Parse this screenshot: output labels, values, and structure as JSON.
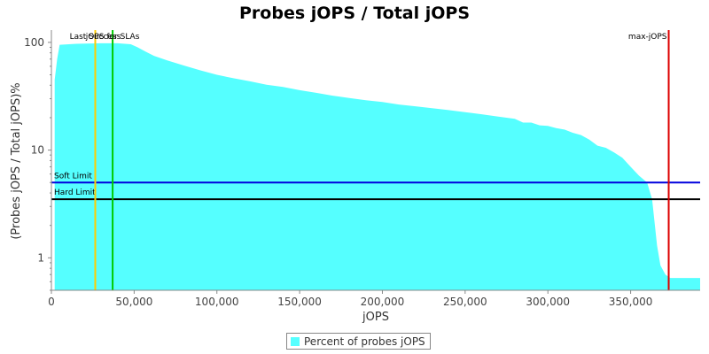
{
  "chart_data": {
    "type": "area",
    "title": "Probes jOPS / Total jOPS",
    "xlabel": "jOPS",
    "ylabel": "(Probes jOPS / Total jOPS)%",
    "x_range": [
      0,
      392000
    ],
    "y_range": [
      0.5,
      130
    ],
    "y_scale": "log",
    "x_ticks": [
      {
        "value": 0,
        "label": "0"
      },
      {
        "value": 50000,
        "label": "50,000"
      },
      {
        "value": 100000,
        "label": "100,000"
      },
      {
        "value": 150000,
        "label": "150,000"
      },
      {
        "value": 200000,
        "label": "200,000"
      },
      {
        "value": 250000,
        "label": "250,000"
      },
      {
        "value": 300000,
        "label": "300,000"
      },
      {
        "value": 350000,
        "label": "350,000"
      }
    ],
    "y_ticks": [
      {
        "value": 1,
        "label": "1"
      },
      {
        "value": 10,
        "label": "10"
      },
      {
        "value": 100,
        "label": "100"
      }
    ],
    "series": [
      {
        "name": "Percent of probes jOPS",
        "color": "#55FFFF",
        "points": [
          [
            2000,
            45
          ],
          [
            3500,
            70
          ],
          [
            5000,
            95
          ],
          [
            15000,
            97
          ],
          [
            30000,
            98
          ],
          [
            40000,
            98
          ],
          [
            48000,
            96
          ],
          [
            52000,
            90
          ],
          [
            57000,
            82
          ],
          [
            62000,
            75
          ],
          [
            70000,
            68
          ],
          [
            80000,
            61
          ],
          [
            90000,
            55
          ],
          [
            100000,
            50
          ],
          [
            110000,
            46.5
          ],
          [
            120000,
            43.5
          ],
          [
            130000,
            40.5
          ],
          [
            140000,
            38.5
          ],
          [
            150000,
            36
          ],
          [
            160000,
            34
          ],
          [
            170000,
            32
          ],
          [
            180000,
            30.5
          ],
          [
            190000,
            29
          ],
          [
            200000,
            28
          ],
          [
            210000,
            26.5
          ],
          [
            220000,
            25.5
          ],
          [
            230000,
            24.5
          ],
          [
            240000,
            23.5
          ],
          [
            250000,
            22.5
          ],
          [
            260000,
            21.5
          ],
          [
            270000,
            20.5
          ],
          [
            280000,
            19.5
          ],
          [
            285000,
            18
          ],
          [
            290000,
            18
          ],
          [
            295000,
            17
          ],
          [
            300000,
            16.8
          ],
          [
            305000,
            16
          ],
          [
            310000,
            15.5
          ],
          [
            315000,
            14.5
          ],
          [
            320000,
            13.8
          ],
          [
            325000,
            12.5
          ],
          [
            330000,
            11
          ],
          [
            335000,
            10.5
          ],
          [
            340000,
            9.5
          ],
          [
            345000,
            8.5
          ],
          [
            350000,
            7
          ],
          [
            355000,
            5.8
          ],
          [
            360000,
            5
          ],
          [
            363000,
            3.5
          ],
          [
            366000,
            1.3
          ],
          [
            368000,
            0.85
          ],
          [
            371000,
            0.7
          ],
          [
            374000,
            0.65
          ],
          [
            392000,
            0.65
          ]
        ]
      }
    ],
    "vertical_markers": [
      {
        "label": "Last Success",
        "x": 26500,
        "color": "#FFCC00"
      },
      {
        "label": "jOPS for SLAs",
        "x": 37000,
        "color": "#00CC00"
      },
      {
        "label": "max-jOPS",
        "x": 373000,
        "color": "#DD0000"
      }
    ],
    "horizontal_markers": [
      {
        "label": "Soft Limit",
        "y": 5,
        "color": "#0000DD"
      },
      {
        "label": "Hard Limit",
        "y": 3.5,
        "color": "#000000"
      }
    ],
    "legend": {
      "position": "bottom-center",
      "label": "Percent of probes jOPS"
    }
  }
}
